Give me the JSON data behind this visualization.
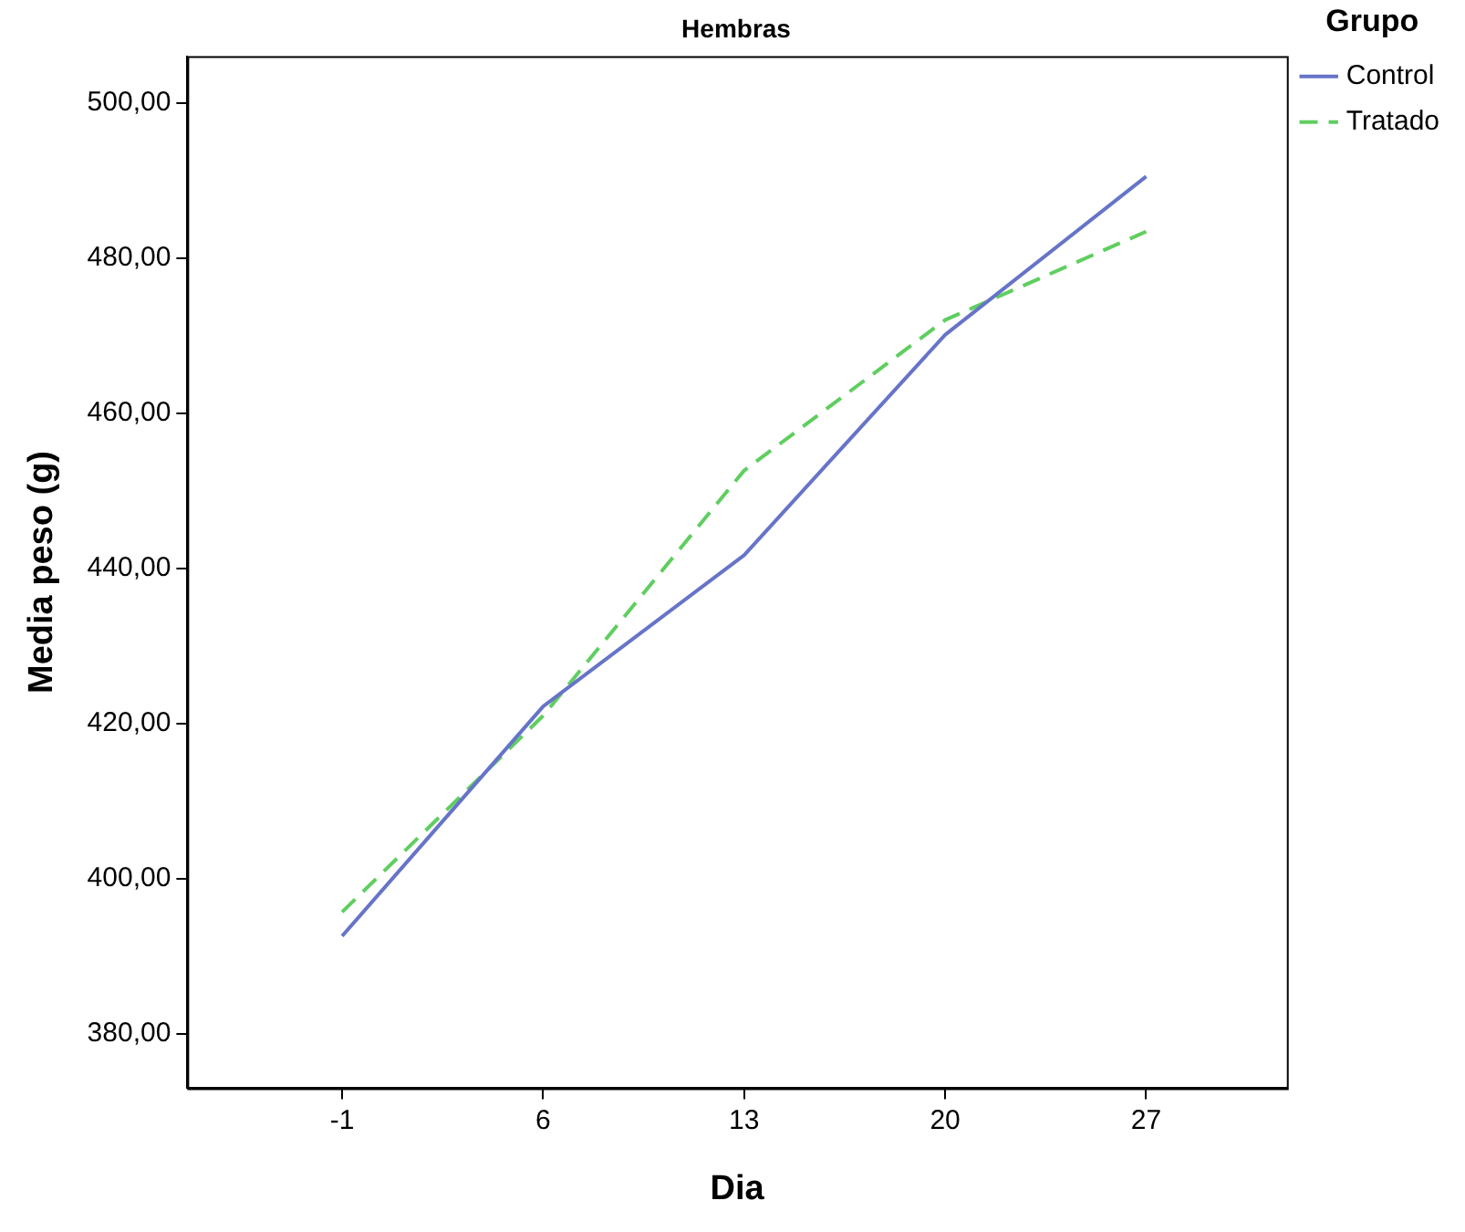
{
  "chart_data": {
    "type": "line",
    "title": "Hembras",
    "xlabel": "Dia",
    "ylabel": "Media peso (g)",
    "legend_title": "Grupo",
    "categories": [
      "-1",
      "6",
      "13",
      "20",
      "27"
    ],
    "series": [
      {
        "name": "Control",
        "color": "#6674c8",
        "line_style": "solid",
        "values": [
          392.6,
          422.2,
          441.7,
          470.1,
          490.5
        ]
      },
      {
        "name": "Tratado",
        "color": "#5fce5f",
        "line_style": "dashed",
        "values": [
          395.7,
          421,
          452.6,
          472,
          483.4
        ]
      }
    ],
    "ylim": [
      373,
      506
    ],
    "yticks": [
      {
        "value": 380,
        "label": "380,00"
      },
      {
        "value": 400,
        "label": "400,00"
      },
      {
        "value": 420,
        "label": "420,00"
      },
      {
        "value": 440,
        "label": "440,00"
      },
      {
        "value": 460,
        "label": "460,00"
      },
      {
        "value": 480,
        "label": "480,00"
      },
      {
        "value": 500,
        "label": "500,00"
      }
    ],
    "grid": false,
    "legend": "top right",
    "marker": "none"
  }
}
